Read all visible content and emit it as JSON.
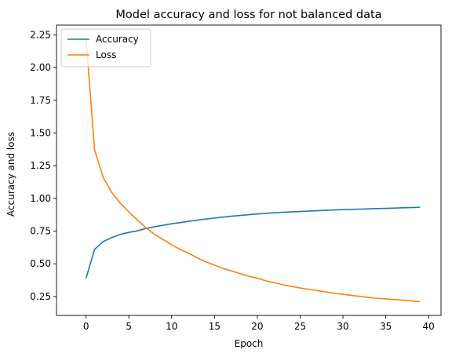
{
  "chart_data": {
    "type": "line",
    "title": "Model accuracy and loss for not balanced data",
    "xlabel": "Epoch",
    "ylabel": "Accuracy and loss",
    "xlim": [
      -3.45,
      41.45
    ],
    "ylim": [
      0.1055,
      2.3245
    ],
    "xticks": [
      "0",
      "5",
      "10",
      "15",
      "20",
      "25",
      "30",
      "35",
      "40"
    ],
    "yticks": [
      "0.25",
      "0.50",
      "0.75",
      "1.00",
      "1.25",
      "1.50",
      "1.75",
      "2.00",
      "2.25"
    ],
    "x": [
      0,
      1,
      2,
      3,
      4,
      5,
      6,
      7,
      8,
      9,
      10,
      11,
      12,
      13,
      14,
      15,
      16,
      17,
      18,
      19,
      20,
      21,
      22,
      23,
      24,
      25,
      26,
      27,
      28,
      29,
      30,
      31,
      32,
      33,
      34,
      35,
      36,
      37,
      38,
      39
    ],
    "series": [
      {
        "name": "Accuracy",
        "color": "#1f77b4",
        "values": [
          0.39,
          0.61,
          0.67,
          0.7,
          0.725,
          0.74,
          0.752,
          0.77,
          0.783,
          0.795,
          0.806,
          0.815,
          0.825,
          0.834,
          0.842,
          0.85,
          0.857,
          0.864,
          0.87,
          0.876,
          0.881,
          0.886,
          0.89,
          0.894,
          0.897,
          0.9,
          0.903,
          0.906,
          0.909,
          0.912,
          0.914,
          0.916,
          0.918,
          0.92,
          0.922,
          0.924,
          0.926,
          0.928,
          0.93,
          0.932
        ]
      },
      {
        "name": "Loss",
        "color": "#ff7f0e",
        "values": [
          2.22,
          1.37,
          1.16,
          1.045,
          0.965,
          0.895,
          0.835,
          0.775,
          0.725,
          0.685,
          0.645,
          0.61,
          0.58,
          0.545,
          0.515,
          0.49,
          0.465,
          0.445,
          0.425,
          0.405,
          0.39,
          0.37,
          0.355,
          0.34,
          0.327,
          0.315,
          0.305,
          0.295,
          0.285,
          0.275,
          0.267,
          0.259,
          0.251,
          0.243,
          0.236,
          0.232,
          0.227,
          0.222,
          0.217,
          0.21
        ]
      }
    ],
    "legend_position": "top-left",
    "grid": false
  }
}
